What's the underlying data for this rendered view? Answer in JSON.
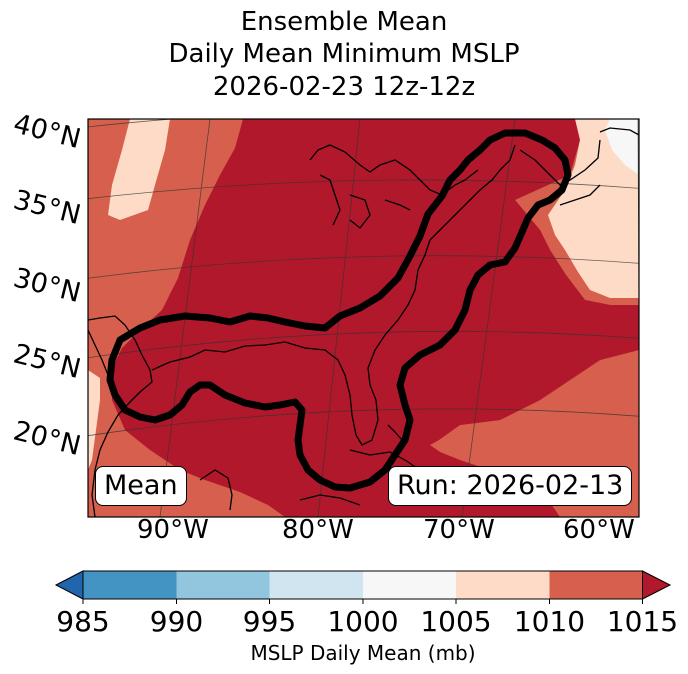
{
  "title": {
    "line1": "Ensemble Mean",
    "line2": "Daily Mean Minimum MSLP",
    "line3": "2026-02-23 12z-12z"
  },
  "map": {
    "lat_labels": [
      "40°N",
      "35°N",
      "30°N",
      "25°N",
      "20°N"
    ],
    "lon_labels": [
      "90°W",
      "80°W",
      "70°W",
      "60°W"
    ],
    "mean_label": "Mean",
    "run_label": "Run: 2026-02-13"
  },
  "colorbar": {
    "label": "MSLP Daily Mean (mb)",
    "ticks": [
      "985",
      "990",
      "995",
      "1000",
      "1005",
      "1010",
      "1015"
    ],
    "colors": {
      "below_985": "#2166ac",
      "985_990": "#4393c3",
      "990_995": "#92c5de",
      "995_1000": "#d1e5f0",
      "1000_1005": "#f7f7f7",
      "1005_1010": "#fddbc7",
      "1010_1015": "#d6604d",
      "above_1015": "#b2182b"
    }
  }
}
